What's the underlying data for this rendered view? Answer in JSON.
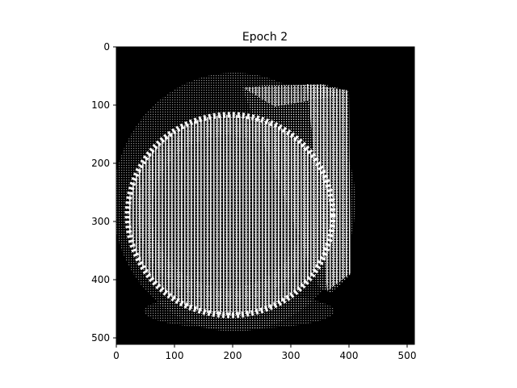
{
  "figure": {
    "title": "Epoch 2",
    "x_ticks": [
      "0",
      "100",
      "200",
      "300",
      "400",
      "500"
    ],
    "y_ticks": [
      "0",
      "100",
      "200",
      "300",
      "400",
      "500"
    ],
    "image_extent": [
      0,
      512
    ],
    "image_description": "black-and-white dotted image of an oval shape with a vertical slab edge on the right"
  },
  "colors": {
    "background": "#000000",
    "foreground": "#ffffff",
    "axes": "#000000"
  }
}
